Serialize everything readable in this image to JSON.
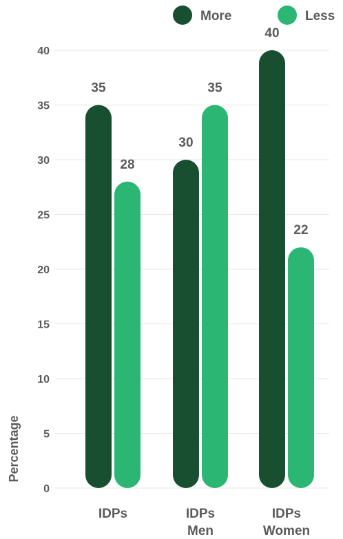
{
  "chart_data": {
    "type": "bar",
    "categories": [
      [
        "IDPs"
      ],
      [
        "IDPs",
        "Men"
      ],
      [
        "IDPs",
        "Women"
      ]
    ],
    "series": [
      {
        "name": "More",
        "values": [
          35,
          30,
          40
        ],
        "color": "#174f30"
      },
      {
        "name": "Less",
        "values": [
          28,
          35,
          22
        ],
        "color": "#2bb673"
      }
    ],
    "ylabel": "Percentage",
    "ylim": [
      0,
      40
    ],
    "yticks": [
      0,
      5,
      10,
      15,
      20,
      25,
      30,
      35,
      40
    ],
    "grid": true,
    "legend_position": "top-right"
  }
}
